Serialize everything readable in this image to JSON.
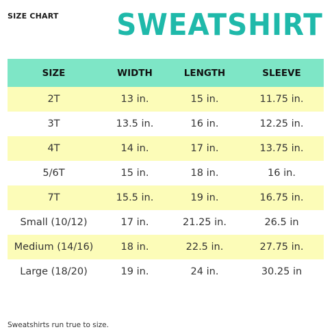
{
  "header": {
    "label": "SIZE CHART",
    "title": "SWEATSHIRT"
  },
  "table": {
    "columns": [
      "SIZE",
      "WIDTH",
      "LENGTH",
      "SLEEVE"
    ],
    "rows": [
      [
        "2T",
        "13 in.",
        "15 in.",
        "11.75 in."
      ],
      [
        "3T",
        "13.5 in.",
        "16 in.",
        "12.25 in."
      ],
      [
        "4T",
        "14 in.",
        "17 in.",
        "13.75 in."
      ],
      [
        "5/6T",
        "15 in.",
        "18 in.",
        "16 in."
      ],
      [
        "7T",
        "15.5 in.",
        "19 in.",
        "16.75 in."
      ],
      [
        "Small (10/12)",
        "17 in.",
        "21.25 in.",
        "26.5 in"
      ],
      [
        "Medium (14/16)",
        "18 in.",
        "22.5 in.",
        "27.75 in."
      ],
      [
        "Large (18/20)",
        "19 in.",
        "24 in.",
        "30.25 in"
      ]
    ]
  },
  "footnote": "Sweatshirts run true to size.",
  "colors": {
    "title": "#1fb9aa",
    "header_row": "#7ee6c6",
    "stripe": "#fcfcb8"
  }
}
